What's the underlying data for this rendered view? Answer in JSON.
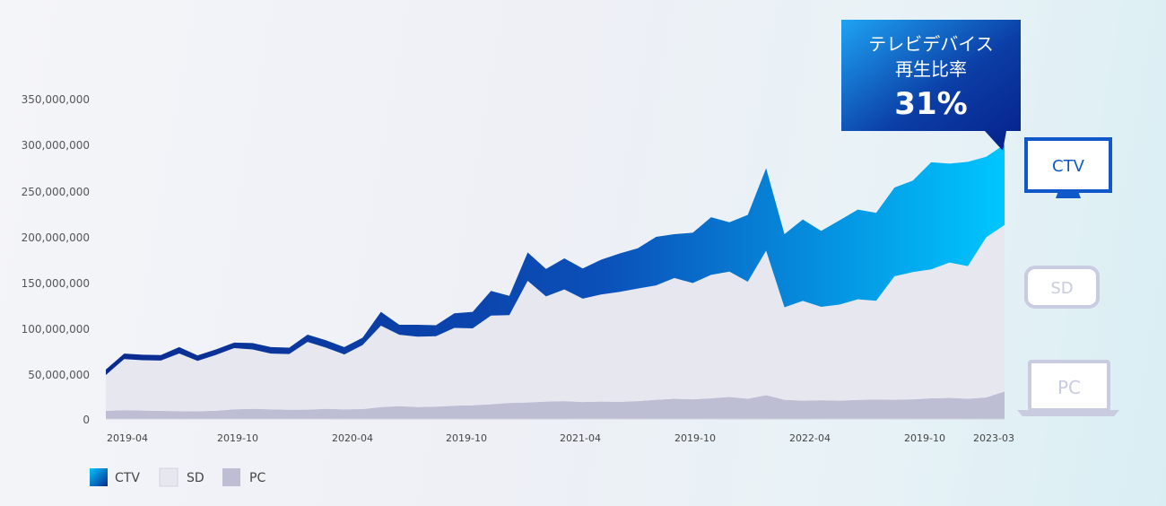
{
  "chart_data": {
    "type": "area",
    "stacked": true,
    "ylim": [
      0,
      350000000
    ],
    "y_ticks": [
      "350,000,000",
      "300,000,000",
      "250,000,000",
      "200,000,000",
      "150,000,000",
      "100,000,000",
      "50,000,000",
      "0"
    ],
    "x_ticks": [
      "2019-04",
      "2019-10",
      "2020-04",
      "2019-10",
      "2021-04",
      "2019-10",
      "2022-04",
      "2019-10",
      "2023-03"
    ],
    "series": [
      {
        "name": "PC",
        "color": "#bdbdd4",
        "values": [
          9000000,
          9500000,
          9200000,
          8800000,
          8600000,
          8500000,
          9000000,
          10500000,
          11000000,
          10500000,
          10000000,
          10200000,
          11000000,
          10500000,
          10800000,
          13000000,
          14000000,
          13000000,
          13500000,
          14500000,
          15000000,
          16000000,
          17500000,
          18000000,
          19000000,
          19500000,
          18500000,
          19000000,
          18800000,
          19500000,
          21000000,
          22000000,
          21500000,
          22500000,
          24000000,
          22000000,
          26000000,
          21000000,
          20000000,
          20500000,
          20000000,
          20800000,
          21200000,
          21000000,
          21500000,
          22500000,
          23000000,
          22000000,
          23500000,
          30000000
        ]
      },
      {
        "name": "SD",
        "color": "#e6e7ef",
        "values": [
          39000000,
          56000000,
          55000000,
          55000000,
          63000000,
          55000000,
          61000000,
          67000000,
          65000000,
          61000000,
          61000000,
          74000000,
          67000000,
          60000000,
          70000000,
          89000000,
          78000000,
          77000000,
          77000000,
          85000000,
          84000000,
          97000000,
          96000000,
          133000000,
          115000000,
          122000000,
          113000000,
          117000000,
          120000000,
          123000000,
          125000000,
          132000000,
          127000000,
          135000000,
          137000000,
          128000000,
          158000000,
          101000000,
          109000000,
          102000000,
          105000000,
          110000000,
          108000000,
          135000000,
          139000000,
          141000000,
          148000000,
          145000000,
          175000000,
          182000000
        ]
      },
      {
        "name": "CTV",
        "color": "#1d4faf",
        "values": [
          6000000,
          6000000,
          6000000,
          6000000,
          7000000,
          6000000,
          6000000,
          6000000,
          7000000,
          7000000,
          7000000,
          8000000,
          8000000,
          8000000,
          8000000,
          15000000,
          11000000,
          13000000,
          12000000,
          16000000,
          18000000,
          27000000,
          21000000,
          31000000,
          30000000,
          34000000,
          33000000,
          38000000,
          42000000,
          44000000,
          53000000,
          48000000,
          55000000,
          63000000,
          54000000,
          73000000,
          90000000,
          80000000,
          89000000,
          83000000,
          92000000,
          98000000,
          96000000,
          97000000,
          100000000,
          117000000,
          108000000,
          114000000,
          88000000,
          88000000
        ]
      }
    ],
    "legend": [
      "CTV",
      "SD",
      "PC"
    ],
    "legend_position": "bottom-left",
    "callout": {
      "line1": "テレビデバイス",
      "line2": "再生比率",
      "value": "31%"
    },
    "device_labels": {
      "ctv": "CTV",
      "sd": "SD",
      "pc": "PC"
    },
    "colors": {
      "ctv_dark": "#0a2a8f",
      "ctv_light": "#00c6ff",
      "callout_light": "#1ea3f2",
      "callout_dark": "#06208a",
      "ctv_icon": "#1057c9",
      "inactive_icon": "#c9cbe0",
      "sd_fill": "#e6e7ef",
      "pc_fill": "#bdbdd4",
      "axis_text": "#555555"
    }
  }
}
